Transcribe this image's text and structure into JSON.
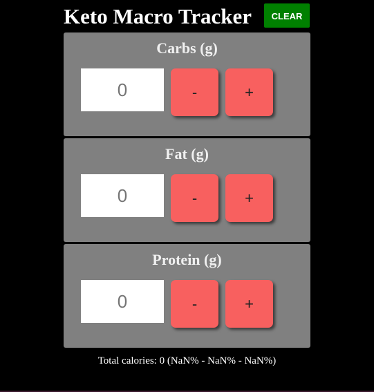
{
  "header": {
    "title": "Keto Macro Tracker",
    "clear_label": "CLEAR"
  },
  "macros": [
    {
      "label": "Carbs (g)",
      "value": "0",
      "minus_label": "-",
      "plus_label": "+"
    },
    {
      "label": "Fat (g)",
      "value": "0",
      "minus_label": "-",
      "plus_label": "+"
    },
    {
      "label": "Protein (g)",
      "value": "0",
      "minus_label": "-",
      "plus_label": "+"
    }
  ],
  "totals": {
    "text": "Total calories: 0 (NaN% - NaN% - NaN%)"
  },
  "colors": {
    "background": "#000000",
    "panel": "#808080",
    "stepper_button": "#f8605f",
    "clear_button": "#008000"
  }
}
